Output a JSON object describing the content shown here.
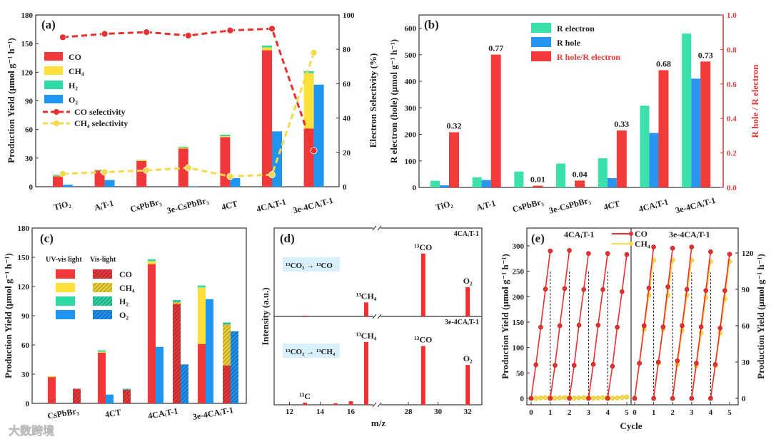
{
  "colors": {
    "CO": "#f0373a",
    "CH4": "#fde13a",
    "H2": "#2fd9a4",
    "O2": "#1e96f0",
    "R_electron": "#3be0ab",
    "R_hole": "#2a95f0",
    "ratio": "#f23c3c",
    "co_line": "#e8302f",
    "ch4_line": "#f5d94a"
  },
  "watermark": "大数跨境",
  "chart_data": [
    {
      "panel": "(a)",
      "type": "bar",
      "categories": [
        "TiO₂",
        "AᵢT-1",
        "CsPbBr₃",
        "3e-CsPbBr₃",
        "4CT",
        "4CAᵢT-1",
        "3e-4CAᵢT-1"
      ],
      "ylabel": "Production Yield (μmol g⁻¹ h⁻¹)",
      "ylim": [
        0,
        180
      ],
      "yticks": [
        0,
        30,
        60,
        90,
        120,
        150,
        180
      ],
      "y2label": "Electron Selectivity (%)",
      "y2lim": [
        0,
        100
      ],
      "y2ticks": [
        0,
        20,
        40,
        60,
        80,
        100
      ],
      "legend": [
        "CO",
        "CH₄",
        "H₂",
        "O₂",
        "CO selectivity",
        "CH₄ selectivity"
      ],
      "series": [
        {
          "name": "CO",
          "values": [
            11,
            17,
            27,
            40,
            52,
            143,
            61
          ]
        },
        {
          "name": "CH4",
          "values": [
            0.5,
            0.5,
            1,
            1,
            1,
            3,
            58
          ]
        },
        {
          "name": "H2",
          "values": [
            1,
            0.5,
            0.3,
            1,
            1.5,
            2,
            2
          ]
        },
        {
          "name": "O2",
          "values": [
            2,
            7,
            0,
            0.5,
            9,
            58,
            107
          ]
        },
        {
          "name": "CO selectivity",
          "axis": "right",
          "values": [
            87,
            89,
            90,
            88,
            91,
            92,
            21
          ]
        },
        {
          "name": "CH4 selectivity",
          "axis": "right",
          "values": [
            7.5,
            8.5,
            9.5,
            11,
            6,
            7,
            78
          ]
        }
      ]
    },
    {
      "panel": "(b)",
      "type": "bar",
      "categories": [
        "TiO₂",
        "AᵢT-1",
        "CsPbBr₃",
        "3e-CsPbBr₃",
        "4CT",
        "4CAᵢT-1",
        "3e-4CAᵢT-1"
      ],
      "ylabel": "R electron (hole) (μmol g⁻¹ h⁻¹)",
      "ylim": [
        0,
        650
      ],
      "yticks": [
        0,
        100,
        200,
        300,
        400,
        500,
        600
      ],
      "y2label": "R hole / R electron",
      "y2lim": [
        0,
        1
      ],
      "y2ticks": [
        "0.0",
        "0.2",
        "0.4",
        "0.6",
        "0.8",
        "1.0"
      ],
      "legend": [
        "R electron",
        "R hole",
        "R hole/R electron"
      ],
      "series": [
        {
          "name": "R electron",
          "values": [
            25,
            38,
            60,
            90,
            110,
            308,
            580
          ]
        },
        {
          "name": "R hole",
          "values": [
            8,
            28,
            0,
            2,
            35,
            205,
            410
          ]
        },
        {
          "name": "R hole/R electron",
          "axis": "right",
          "values": [
            0.32,
            0.77,
            0.01,
            0.04,
            0.33,
            0.68,
            0.73
          ],
          "labels": [
            "0.32",
            "0.77",
            "0.01",
            "0.04",
            "0.33",
            "0.68",
            "0.73"
          ]
        }
      ]
    },
    {
      "panel": "(c)",
      "type": "bar",
      "categories": [
        "CsPbBr₃",
        "4CT",
        "4CAᵢT-1",
        "3e-4CAᵢT-1"
      ],
      "ylabel": "Production Yield (μmol g⁻¹ h⁻¹)",
      "ylim": [
        0,
        180
      ],
      "yticks": [
        0,
        30,
        60,
        90,
        120,
        150,
        180
      ],
      "legend_headers": [
        "UV-vis light",
        "Vis-light"
      ],
      "legend": [
        "CO",
        "CH₄",
        "H₂",
        "O₂"
      ],
      "uv_vis": {
        "CO": [
          27,
          52,
          143,
          61
        ],
        "CH4": [
          1,
          1,
          3,
          58
        ],
        "H2": [
          0,
          1.5,
          2,
          2
        ],
        "O2": [
          0,
          9,
          58,
          107
        ]
      },
      "vis": {
        "CO": [
          15,
          14,
          102,
          39
        ],
        "CH4": [
          0,
          0,
          2,
          42
        ],
        "H2": [
          0,
          1,
          2,
          2
        ],
        "O2": [
          0,
          0,
          40,
          74
        ]
      }
    },
    {
      "panel": "(d)",
      "type": "bar",
      "xlabel": "m/z",
      "ylabel": "Intensity (a.u.)",
      "xticks": [
        12,
        14,
        16,
        28,
        30,
        32
      ],
      "subplots": [
        {
          "sample": "4CAᵢT-1",
          "reaction": "¹³CO₂ → ¹³CO",
          "x": [
            13,
            17,
            29,
            32
          ],
          "values": [
            0.01,
            0.2,
            0.9,
            0.42
          ],
          "labels": [
            "",
            "¹³CH₄",
            "¹³CO",
            "O₂"
          ]
        },
        {
          "sample": "3e-4CAᵢT-1",
          "reaction": "¹³CO₂ → ¹³CH₄",
          "x": [
            13,
            15,
            16,
            17,
            29,
            32
          ],
          "values": [
            0.03,
            0.02,
            0.05,
            0.9,
            0.84,
            0.57
          ],
          "labels": [
            "¹³C",
            "",
            "",
            "¹³CH₄",
            "¹³CO",
            "O₂"
          ]
        }
      ]
    },
    {
      "panel": "(e)",
      "type": "line",
      "xlabel": "Cycle",
      "ylabel": "Production Yield (μmol g⁻¹ h⁻¹)",
      "legend": [
        "CO",
        "CH₄"
      ],
      "left": {
        "sample": "4CAᵢT-1",
        "ylim": [
          0,
          300
        ],
        "yticks": [
          0,
          50,
          100,
          150,
          200,
          250,
          300
        ],
        "xticks": [
          0,
          1,
          2,
          3,
          4,
          5
        ],
        "CO": [
          [
            0,
            66,
            140,
            215,
            290
          ],
          [
            0,
            65,
            143,
            216,
            291
          ],
          [
            0,
            65,
            144,
            214,
            285
          ],
          [
            0,
            67,
            144,
            214,
            285
          ],
          [
            0,
            63,
            140,
            210,
            283
          ]
        ],
        "CH4": [
          [
            0,
            0.5,
            1,
            1.5,
            2
          ],
          [
            0,
            0.5,
            1,
            1.5,
            2
          ],
          [
            0,
            0.5,
            1,
            1.5,
            2
          ],
          [
            0,
            0.5,
            1,
            1.5,
            2
          ],
          [
            0,
            0.5,
            1,
            1.5,
            2.5
          ]
        ]
      },
      "right": {
        "sample": "3e-4CAᵢT-1",
        "ylim": [
          0,
          120
        ],
        "yticks": [
          0,
          30,
          60,
          90,
          120
        ],
        "xticks": [
          0,
          1,
          2,
          3,
          4,
          5
        ],
        "CO": [
          [
            0,
            29,
            60,
            91,
            125
          ],
          [
            0,
            30,
            59,
            92,
            124
          ],
          [
            0,
            31,
            60,
            90,
            125
          ],
          [
            0,
            29,
            59,
            89,
            121
          ],
          [
            0,
            28,
            58,
            89,
            119
          ]
        ],
        "CH4": [
          [
            0,
            29,
            57,
            85,
            114
          ],
          [
            0,
            29,
            57,
            85,
            114
          ],
          [
            0,
            28,
            56,
            85,
            114
          ],
          [
            0,
            27,
            54,
            83,
            113
          ],
          [
            0,
            27,
            54,
            82,
            113
          ]
        ]
      }
    }
  ]
}
